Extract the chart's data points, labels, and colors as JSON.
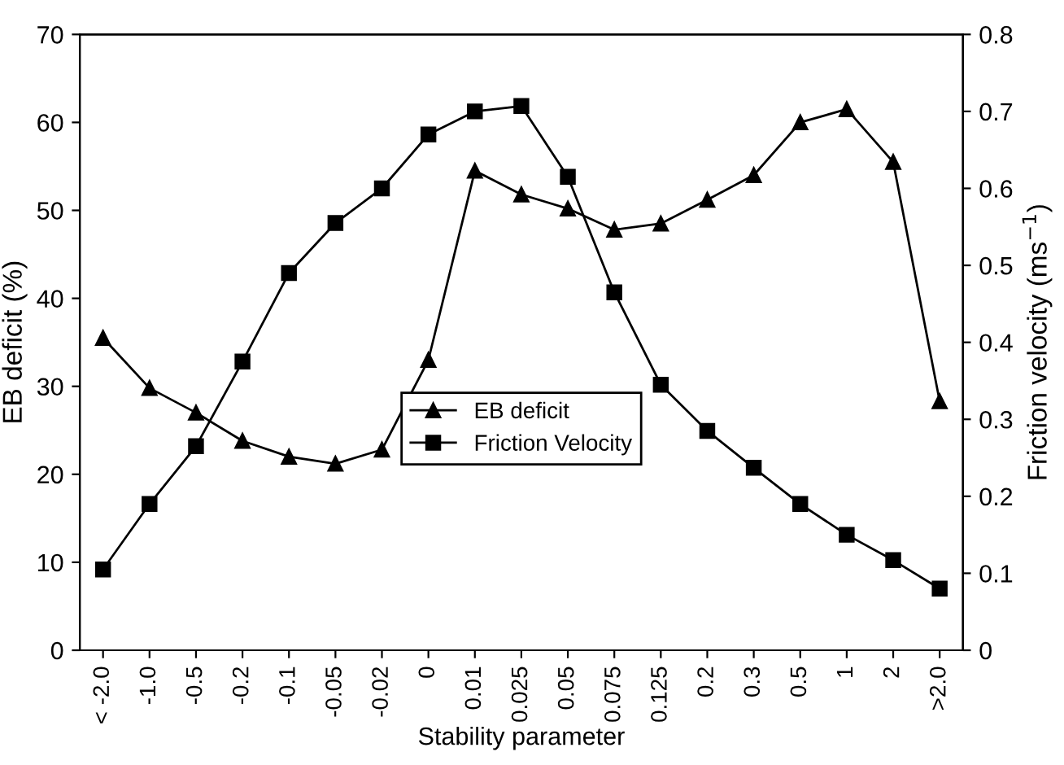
{
  "chart_data": {
    "type": "line",
    "xlabel": "Stability parameter",
    "ylabel": "EB deficit (%)",
    "y2label": "Friction velocity (ms$^{−1}$)",
    "categories": [
      "< -2.0",
      "-1.0",
      "-0.5",
      "-0.2",
      "-0.1",
      "-0.05",
      "-0.02",
      "0",
      "0.01",
      "0.025",
      "0.05",
      "0.075",
      "0.125",
      "0.2",
      "0.3",
      "0.5",
      "1",
      "2",
      ">2.0"
    ],
    "series": [
      {
        "name": "EB deficit",
        "color": "#000000",
        "marker": "triangle",
        "values": [
          35.5,
          29.8,
          27,
          23.8,
          22,
          21.2,
          22.8,
          33,
          54.5,
          51.8,
          50.2,
          47.8,
          48.5,
          51.2,
          54,
          60,
          61.5,
          55.5,
          28.3
        ]
      },
      {
        "name": "Friction Velocity",
        "color": "#000000",
        "marker": "square",
        "axis": "y2",
        "values": [
          0.105,
          0.19,
          0.265,
          0.375,
          0.49,
          0.555,
          0.6,
          0.67,
          0.7,
          0.707,
          0.615,
          0.465,
          0.345,
          0.285,
          0.237,
          0.19,
          0.15,
          0.117,
          0.08
        ]
      }
    ],
    "ylim": [
      0,
      70
    ],
    "yticks": [
      0,
      10,
      20,
      30,
      40,
      50,
      60,
      70
    ],
    "y2lim": [
      0,
      0.8
    ],
    "y2ticks": [
      0,
      0.1,
      0.2,
      0.3,
      0.4,
      0.5,
      0.6,
      0.7,
      0.8
    ],
    "grid": false,
    "legend": "center",
    "line_style": "solid"
  }
}
